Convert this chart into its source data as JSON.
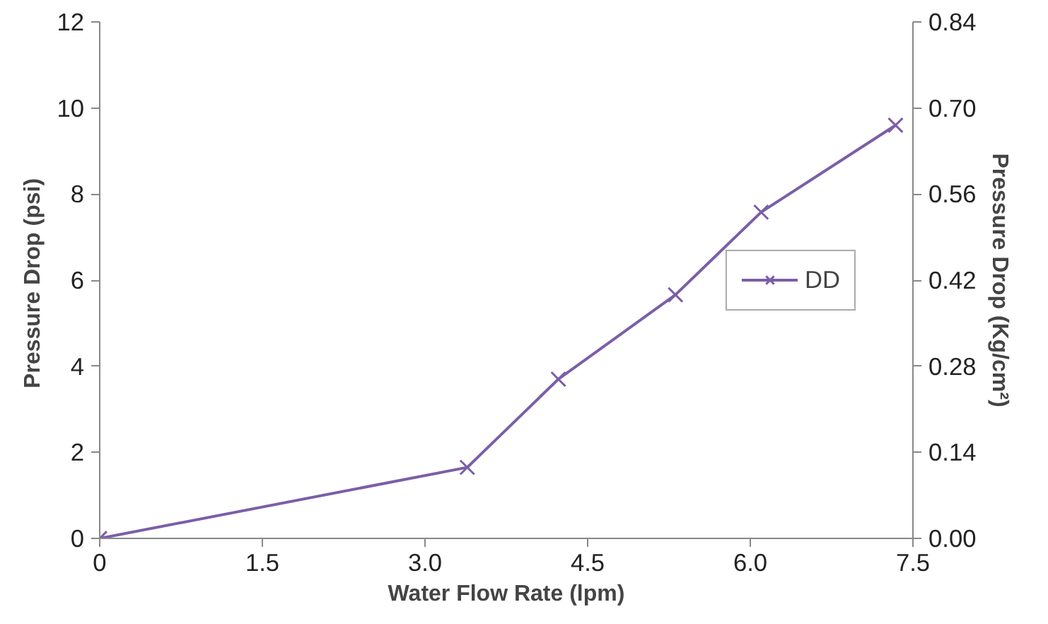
{
  "chart_data": {
    "type": "line",
    "xlabel": "Water Flow Rate (lpm)",
    "ylabel": "Pressure Drop  (psi)",
    "y2label": "Pressure Drop (Kg/cm²)",
    "x": [
      0,
      3.39,
      4.23,
      5.31,
      6.1,
      7.34
    ],
    "series": [
      {
        "name": "DD",
        "color": "#7b5ea7",
        "values": [
          0,
          1.65,
          3.7,
          5.66,
          7.58,
          9.6
        ]
      }
    ],
    "xlim": [
      0,
      7.5
    ],
    "xticks": [
      0,
      1.5,
      {
        "value": 3,
        "label": "3.0"
      },
      4.5,
      {
        "value": 6,
        "label": "6.0"
      },
      7.5
    ],
    "ylim": [
      0,
      12
    ],
    "yticks": [
      0,
      2,
      4,
      6,
      8,
      10,
      12
    ],
    "y2lim": [
      0,
      0.84
    ],
    "y2ticks": [
      {
        "value": 0,
        "label": "0.00"
      },
      {
        "value": 0.14,
        "label": "0.14"
      },
      {
        "value": 0.28,
        "label": "0.28"
      },
      {
        "value": 0.42,
        "label": "0.42"
      },
      {
        "value": 0.56,
        "label": "0.56"
      },
      {
        "value": 0.7,
        "label": "0.70"
      },
      {
        "value": 0.84,
        "label": "0.84"
      }
    ],
    "marker": "cross",
    "legend": "right",
    "grid": false
  }
}
